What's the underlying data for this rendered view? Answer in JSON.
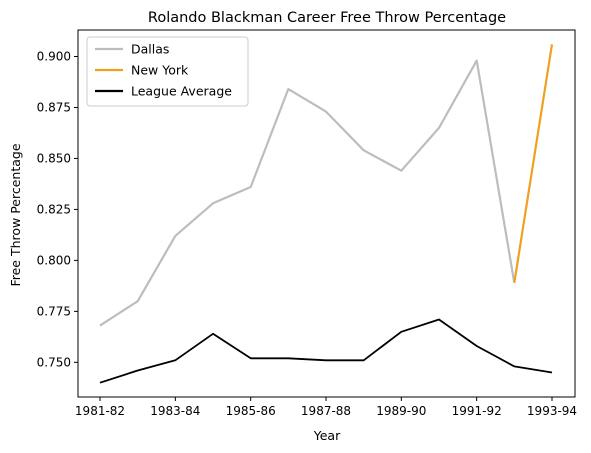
{
  "chart_data": {
    "type": "line",
    "title": "Rolando Blackman Career Free Throw Percentage",
    "xlabel": "Year",
    "ylabel": "Free Throw Percentage",
    "x": [
      "1981-82",
      "1982-83",
      "1983-84",
      "1984-85",
      "1985-86",
      "1986-87",
      "1987-88",
      "1988-89",
      "1989-90",
      "1990-91",
      "1991-92",
      "1992-93",
      "1993-94"
    ],
    "xticks": [
      "1981-82",
      "1983-84",
      "1985-86",
      "1987-88",
      "1989-90",
      "1991-92",
      "1993-94"
    ],
    "ylim": [
      0.733,
      0.913
    ],
    "yticks": [
      "0.750",
      "0.775",
      "0.800",
      "0.825",
      "0.850",
      "0.875",
      "0.900"
    ],
    "grid": false,
    "legend_position": "top-left",
    "series": [
      {
        "name": "Dallas",
        "color": "#bdbdbd",
        "values": [
          0.768,
          0.78,
          0.812,
          0.828,
          0.836,
          0.884,
          0.873,
          0.854,
          0.844,
          0.865,
          0.898,
          0.789,
          null
        ]
      },
      {
        "name": "New York",
        "color": "#f0a020",
        "values": [
          null,
          null,
          null,
          null,
          null,
          null,
          null,
          null,
          null,
          null,
          null,
          0.789,
          0.906
        ]
      },
      {
        "name": "League Average",
        "color": "#000000",
        "values": [
          0.74,
          0.746,
          0.751,
          0.764,
          0.752,
          0.752,
          0.751,
          0.751,
          0.765,
          0.771,
          0.758,
          0.748,
          0.745
        ]
      }
    ]
  }
}
